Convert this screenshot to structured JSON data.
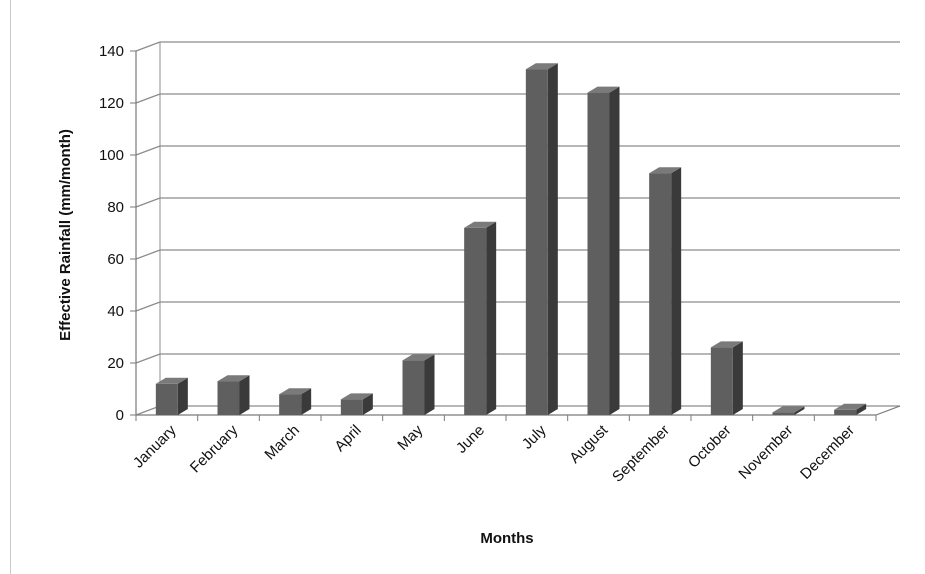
{
  "chart_data": {
    "type": "bar",
    "title": "",
    "xlabel": "Months",
    "ylabel": "Effective Rainfall (mm/month)",
    "categories": [
      "January",
      "February",
      "March",
      "April",
      "May",
      "June",
      "July",
      "August",
      "September",
      "October",
      "November",
      "December"
    ],
    "values": [
      12,
      13,
      8,
      6,
      21,
      72,
      133,
      124,
      93,
      26,
      1,
      2
    ],
    "ylim": [
      0,
      140
    ],
    "yticks": [
      0,
      20,
      40,
      60,
      80,
      100,
      120,
      140
    ],
    "ytick_labels": [
      "0",
      "20",
      "40",
      "60",
      "80",
      "100",
      "120",
      "140"
    ],
    "grid": true,
    "legend": "none",
    "three_d": true,
    "colors": {
      "bar_front": "#5f5f5f",
      "bar_side": "#3a3a3a",
      "bar_top": "#7a7a7a",
      "grid": "#8c8c8c",
      "axis": "#7a7a7a"
    }
  }
}
